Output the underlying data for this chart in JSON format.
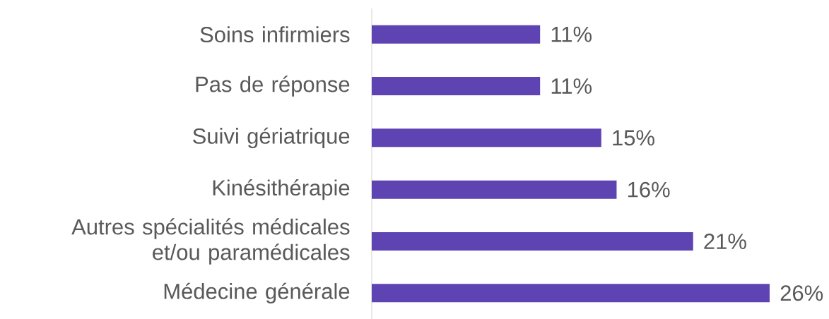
{
  "chart_data": {
    "type": "bar",
    "orientation": "horizontal",
    "categories": [
      "Soins infirmiers",
      "Pas de réponse",
      "Suivi gériatrique",
      "Kinésithérapie",
      "Autres spécialités médicales et/ou paramédicales",
      "Médecine générale"
    ],
    "values": [
      11,
      11,
      15,
      16,
      21,
      26
    ],
    "xlim": [
      0,
      26
    ],
    "color": "#5e43b2",
    "value_labels": [
      "11%",
      "11%",
      "15%",
      "16%",
      "21%",
      "26%"
    ]
  }
}
